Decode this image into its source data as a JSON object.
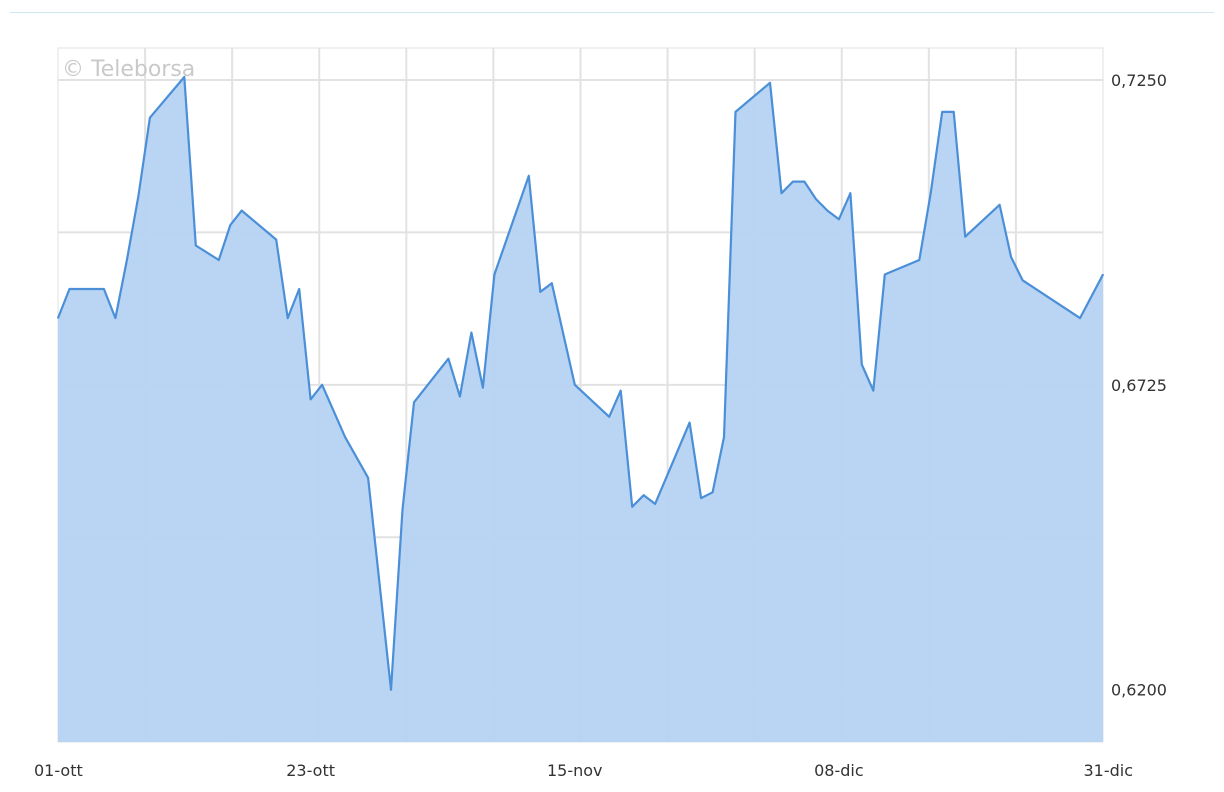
{
  "watermark": "© Teleborsa",
  "chart_data": {
    "type": "area",
    "title": "",
    "xlabel": "",
    "ylabel": "",
    "ylim": [
      0.611,
      0.7305
    ],
    "y_ticks": [
      "0,7250",
      "0,6725",
      "0,6200"
    ],
    "y_tick_values": [
      0.725,
      0.6725,
      0.62
    ],
    "x_tick_labels": [
      "01-ott",
      "23-ott",
      "15-nov",
      "08-dic",
      "31-dic"
    ],
    "x_tick_dates": [
      "2023-10-01",
      "2023-10-23",
      "2023-11-15",
      "2023-12-08",
      "2023-12-31"
    ],
    "grid": true,
    "series": [
      {
        "values": [
          [
            "2023-10-01",
            0.684
          ],
          [
            "2023-10-02",
            0.689
          ],
          [
            "2023-10-04",
            0.689
          ],
          [
            "2023-10-05",
            0.689
          ],
          [
            "2023-10-06",
            0.684
          ],
          [
            "2023-10-07",
            0.694
          ],
          [
            "2023-10-08",
            0.705
          ],
          [
            "2023-10-09",
            0.7185
          ],
          [
            "2023-10-12",
            0.7255
          ],
          [
            "2023-10-13",
            0.6965
          ],
          [
            "2023-10-15",
            0.694
          ],
          [
            "2023-10-16",
            0.7
          ],
          [
            "2023-10-17",
            0.7025
          ],
          [
            "2023-10-20",
            0.6975
          ],
          [
            "2023-10-21",
            0.684
          ],
          [
            "2023-10-22",
            0.689
          ],
          [
            "2023-10-23",
            0.67
          ],
          [
            "2023-10-24",
            0.6725
          ],
          [
            "2023-10-26",
            0.6635
          ],
          [
            "2023-10-28",
            0.6565
          ],
          [
            "2023-10-30",
            0.62
          ],
          [
            "2023-10-31",
            0.651
          ],
          [
            "2023-11-01",
            0.6695
          ],
          [
            "2023-11-04",
            0.677
          ],
          [
            "2023-11-05",
            0.6705
          ],
          [
            "2023-11-06",
            0.6815
          ],
          [
            "2023-11-07",
            0.672
          ],
          [
            "2023-11-08",
            0.6915
          ],
          [
            "2023-11-11",
            0.7085
          ],
          [
            "2023-11-12",
            0.6885
          ],
          [
            "2023-11-13",
            0.69
          ],
          [
            "2023-11-15",
            0.6725
          ],
          [
            "2023-11-18",
            0.667
          ],
          [
            "2023-11-19",
            0.6715
          ],
          [
            "2023-11-20",
            0.6515
          ],
          [
            "2023-11-21",
            0.6535
          ],
          [
            "2023-11-22",
            0.652
          ],
          [
            "2023-11-25",
            0.666
          ],
          [
            "2023-11-26",
            0.653
          ],
          [
            "2023-11-27",
            0.654
          ],
          [
            "2023-11-28",
            0.6635
          ],
          [
            "2023-11-29",
            0.7195
          ],
          [
            "2023-12-02",
            0.7245
          ],
          [
            "2023-12-03",
            0.7055
          ],
          [
            "2023-12-04",
            0.7075
          ],
          [
            "2023-12-05",
            0.7075
          ],
          [
            "2023-12-06",
            0.7045
          ],
          [
            "2023-12-07",
            0.7025
          ],
          [
            "2023-12-08",
            0.701
          ],
          [
            "2023-12-09",
            0.7055
          ],
          [
            "2023-12-10",
            0.676
          ],
          [
            "2023-12-11",
            0.6715
          ],
          [
            "2023-12-12",
            0.6915
          ],
          [
            "2023-12-15",
            0.694
          ],
          [
            "2023-12-16",
            0.7055
          ],
          [
            "2023-12-17",
            0.7195
          ],
          [
            "2023-12-18",
            0.7195
          ],
          [
            "2023-12-19",
            0.698
          ],
          [
            "2023-12-22",
            0.7035
          ],
          [
            "2023-12-23",
            0.6945
          ],
          [
            "2023-12-24",
            0.6905
          ],
          [
            "2023-12-29",
            0.684
          ],
          [
            "2023-12-31",
            0.6915
          ]
        ]
      }
    ],
    "colors": {
      "line": "#4a8fd8",
      "fill": "#b5d3f2",
      "grid": "#e2e2e2",
      "axis_text": "#333333"
    }
  }
}
